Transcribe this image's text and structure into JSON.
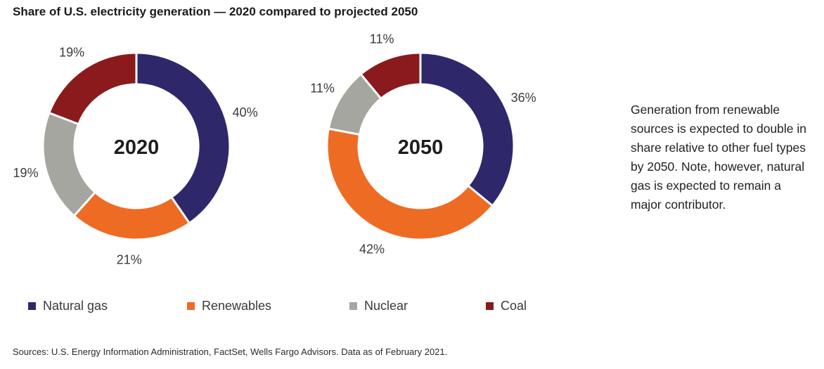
{
  "header": {
    "title": "Share of U.S. electricity generation — 2020 compared to projected 2050"
  },
  "colors": {
    "natural_gas": "#2e286b",
    "renewables": "#ee6b24",
    "nuclear": "#a6a6a0",
    "coal": "#8a1a1c"
  },
  "chart_data": [
    {
      "type": "pie",
      "title": "2020",
      "categories": [
        "Natural gas",
        "Renewables",
        "Nuclear",
        "Coal"
      ],
      "values": [
        40,
        21,
        19,
        19
      ],
      "labels": [
        "40%",
        "21%",
        "19%",
        "19%"
      ]
    },
    {
      "type": "pie",
      "title": "2050",
      "categories": [
        "Natural gas",
        "Renewables",
        "Nuclear",
        "Coal"
      ],
      "values": [
        36,
        42,
        11,
        11
      ],
      "labels": [
        "36%",
        "42%",
        "11%",
        "11%"
      ]
    }
  ],
  "legend": [
    {
      "label": "Natural gas",
      "color": "#2e286b"
    },
    {
      "label": "Renewables",
      "color": "#ee6b24"
    },
    {
      "label": "Nuclear",
      "color": "#a6a6a0"
    },
    {
      "label": "Coal",
      "color": "#8a1a1c"
    }
  ],
  "note": "Generation from renewable sources is expected to double in share relative to other fuel types by 2050. Note, however, natural gas is expected to remain a major contributor.",
  "source": "Sources: U.S. Energy Information Administration, FactSet, Wells Fargo Advisors. Data as of February 2021."
}
